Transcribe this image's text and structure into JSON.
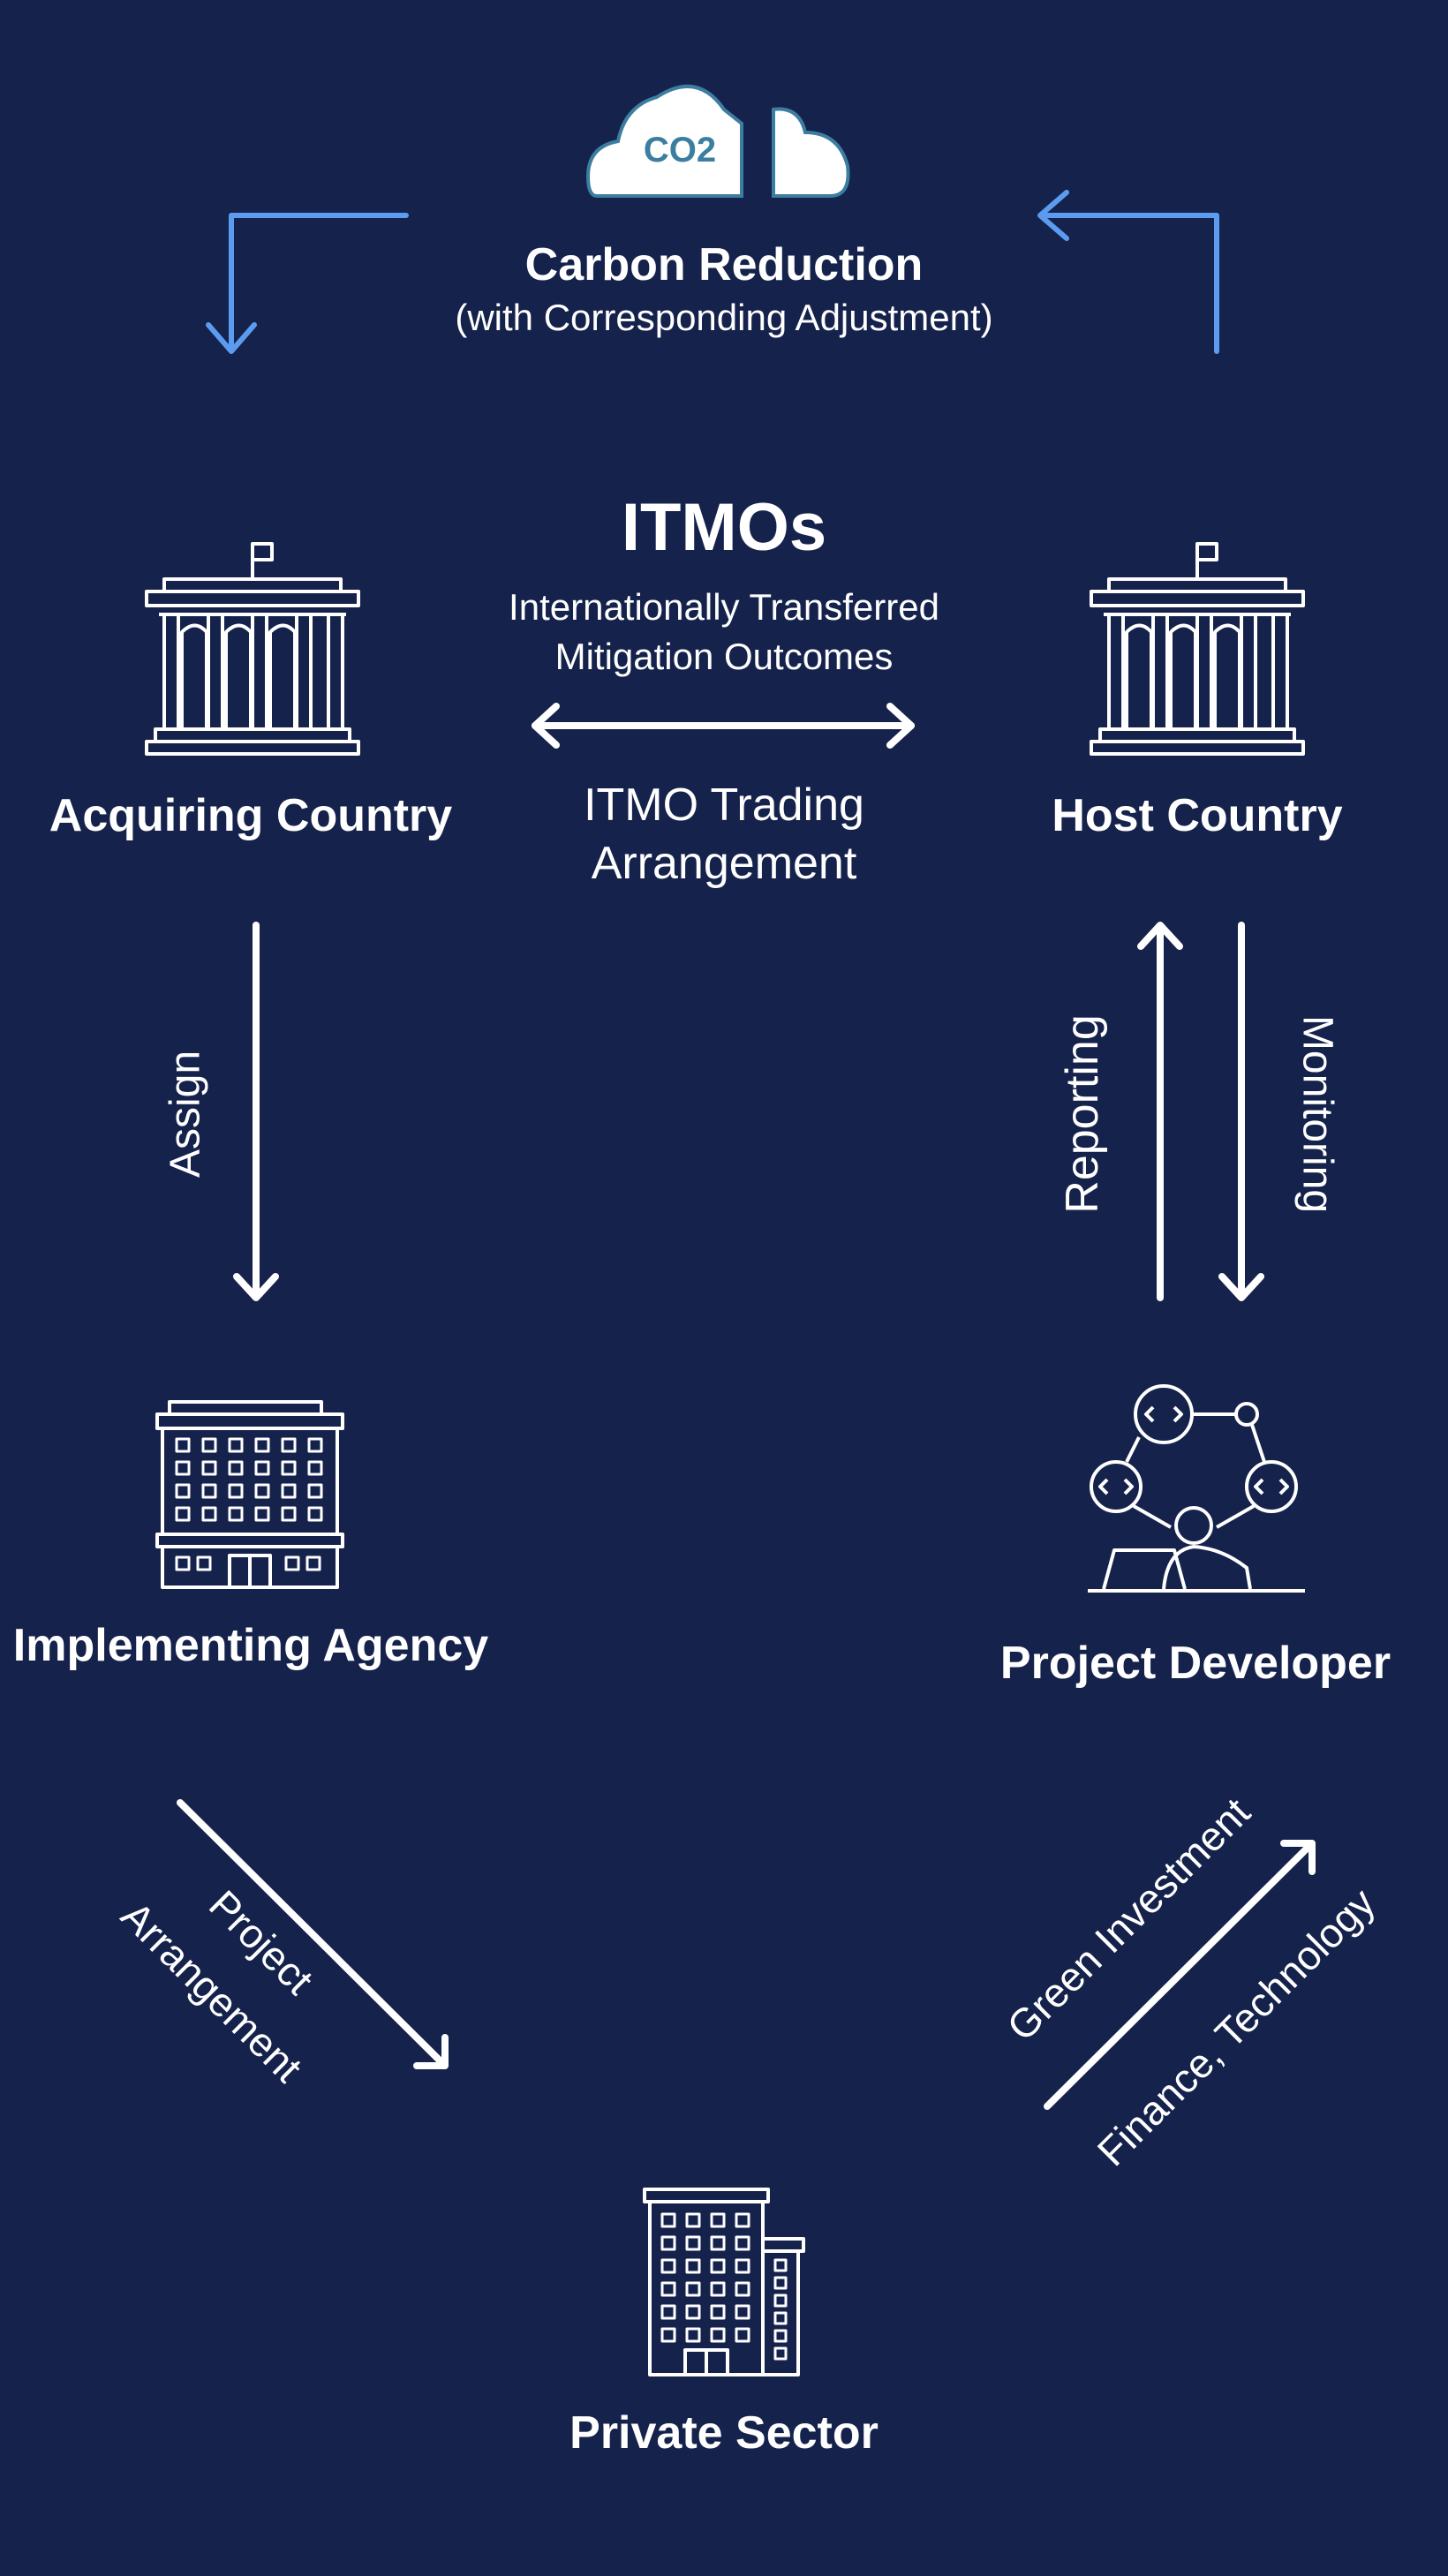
{
  "colors": {
    "background": "#15224c",
    "accent_arrow": "#5b9cf0",
    "foreground": "#ffffff",
    "cloud_fill": "#ffffff",
    "cloud_text": "#3c7ea0"
  },
  "top": {
    "cloud_label": "CO2",
    "title": "Carbon Reduction",
    "subtitle": "(with Corresponding Adjustment)"
  },
  "center": {
    "title": "ITMOs",
    "subtitle_line1": "Internationally Transferred",
    "subtitle_line2": "Mitigation Outcomes",
    "arrangement_line1": "ITMO Trading",
    "arrangement_line2": "Arrangement"
  },
  "nodes": {
    "acquiring": {
      "label": "Acquiring Country",
      "icon": "government-building-icon"
    },
    "host": {
      "label": "Host Country",
      "icon": "government-building-icon"
    },
    "implementing": {
      "label": "Implementing Agency",
      "icon": "office-building-icon"
    },
    "developer": {
      "label": "Project Developer",
      "icon": "developer-network-icon"
    },
    "private": {
      "label": "Private Sector",
      "icon": "tower-building-icon"
    }
  },
  "flows": {
    "assign": "Assign",
    "reporting": "Reporting",
    "monitoring": "Monitoring",
    "project_line1": "Project",
    "project_line2": "Arrangement",
    "green_investment": "Green Investment",
    "finance_technology": "Finance, Technology"
  }
}
